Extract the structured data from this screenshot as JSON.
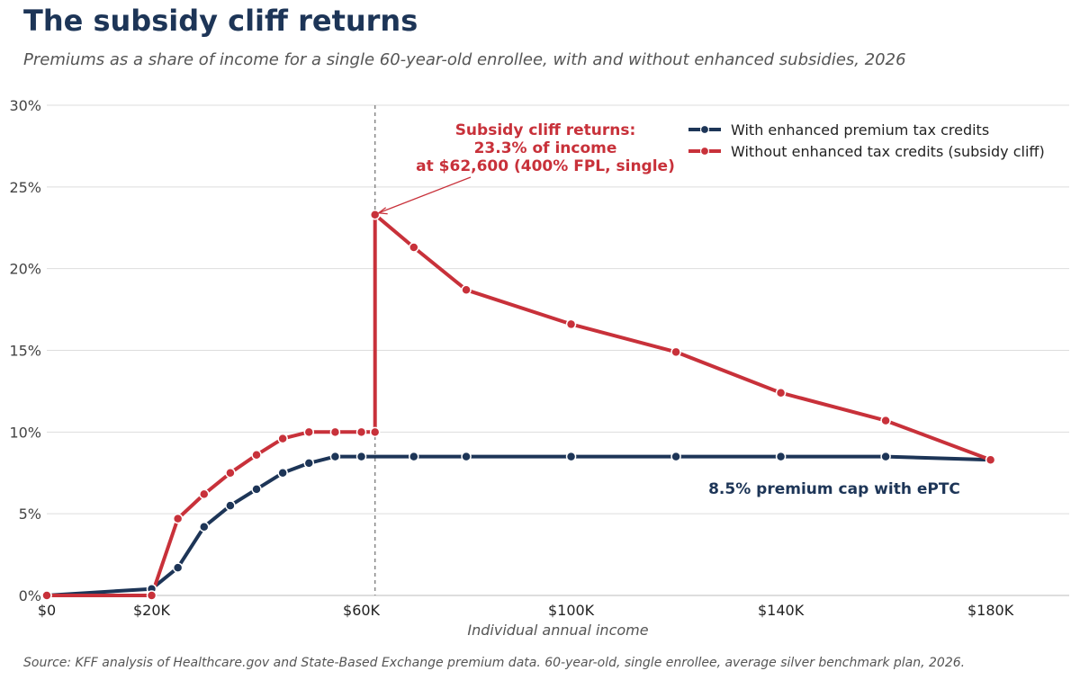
{
  "title": "The subsidy cliff returns",
  "subtitle": "Premiums as a share of income for a single 60-year-old enrollee, with and without enhanced subsidies, 2026",
  "source": "Source: KFF analysis of Healthcare.gov and State-Based Exchange premium data. 60-year-old, single enrollee, average silver benchmark plan, 2026.",
  "colors": {
    "with": "#1d3557",
    "without": "#c8313a",
    "grid": "#dddddd",
    "cliff_line": "#888888"
  },
  "chart_data": {
    "type": "line",
    "title": "The subsidy cliff returns",
    "xlabel": "Individual annual income",
    "ylabel": "",
    "xlim": [
      0,
      195000
    ],
    "ylim": [
      0,
      30
    ],
    "x_ticks": [
      0,
      20000,
      60000,
      100000,
      140000,
      180000
    ],
    "x_tick_labels": [
      "$0",
      "$20K",
      "$60K",
      "$100K",
      "$140K",
      "$180K"
    ],
    "y_ticks": [
      0,
      5,
      10,
      15,
      20,
      25,
      30
    ],
    "y_tick_labels": [
      "0%",
      "5%",
      "10%",
      "15%",
      "20%",
      "25%",
      "30%"
    ],
    "grid": "horizontal",
    "legend_position": "top-right",
    "reference_line_x": 62600,
    "series": [
      {
        "name": "With enhanced premium tax credits",
        "x": [
          0,
          20000,
          25000,
          30000,
          35000,
          40000,
          45000,
          50000,
          55000,
          60000,
          70000,
          80000,
          100000,
          120000,
          140000,
          160000,
          180000
        ],
        "y": [
          0,
          0.4,
          1.7,
          4.2,
          5.5,
          6.5,
          7.5,
          8.1,
          8.5,
          8.5,
          8.5,
          8.5,
          8.5,
          8.5,
          8.5,
          8.5,
          8.3
        ]
      },
      {
        "name": "Without enhanced tax credits (subsidy cliff)",
        "x": [
          0,
          20000,
          25000,
          30000,
          35000,
          40000,
          45000,
          50000,
          55000,
          60000,
          62600,
          62600,
          70000,
          80000,
          100000,
          120000,
          140000,
          160000,
          180000
        ],
        "y": [
          0,
          0,
          4.7,
          6.2,
          7.5,
          8.6,
          9.6,
          10.0,
          10.0,
          10.0,
          10.0,
          23.3,
          21.3,
          18.7,
          16.6,
          14.9,
          12.4,
          10.7,
          8.3
        ]
      }
    ],
    "annotations": {
      "cliff_lines": [
        "Subsidy cliff returns:",
        "23.3% of income",
        "at $62,600 (400% FPL, single)"
      ],
      "cliff_point": {
        "x": 62600,
        "y": 23.3
      },
      "cap_label": "8.5% premium cap with ePTC",
      "cap_point": {
        "x": 155000,
        "y": 6.5
      }
    }
  }
}
